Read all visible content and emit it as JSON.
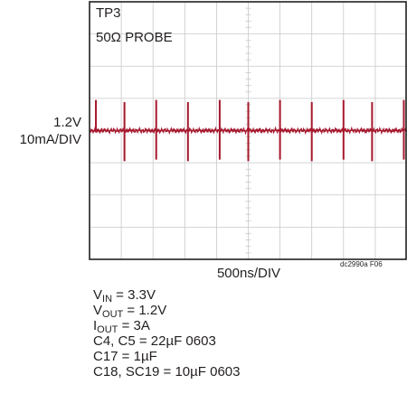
{
  "chart_data": {
    "type": "line",
    "title": "",
    "channel": "TP3",
    "probe": "50Ω PROBE",
    "trace_level": "1.2V",
    "vertical_scale": "10mA/DIV",
    "time_scale": "500ns/DIV",
    "figure_code": "dc2990a F06",
    "x_divisions": 10,
    "y_divisions": 8,
    "grid": true,
    "trace_color": "#a6192e",
    "grid_color": "#c8c8c8",
    "spike_times_div": [
      0.2,
      1.1,
      2.1,
      3.1,
      4.1,
      5.0,
      6.0,
      7.0,
      8.0,
      8.9,
      9.9
    ],
    "spike_amplitude_div": 0.95,
    "spike_polarity": [
      "pos",
      "both",
      "both",
      "both",
      "both",
      "both",
      "both",
      "both",
      "both",
      "both",
      "both"
    ]
  },
  "conditions": [
    {
      "name": "V",
      "sub": "IN",
      "text": " = 3.3V"
    },
    {
      "name": "V",
      "sub": "OUT",
      "text": " = 1.2V"
    },
    {
      "name": "I",
      "sub": "OUT",
      "text": " = 3A"
    },
    {
      "name": "C4, C5 = 22µF 0603",
      "sub": "",
      "text": ""
    },
    {
      "name": "C17 = 1µF",
      "sub": "",
      "text": ""
    },
    {
      "name": "C18, SC19 = 10µF 0603",
      "sub": "",
      "text": ""
    }
  ]
}
